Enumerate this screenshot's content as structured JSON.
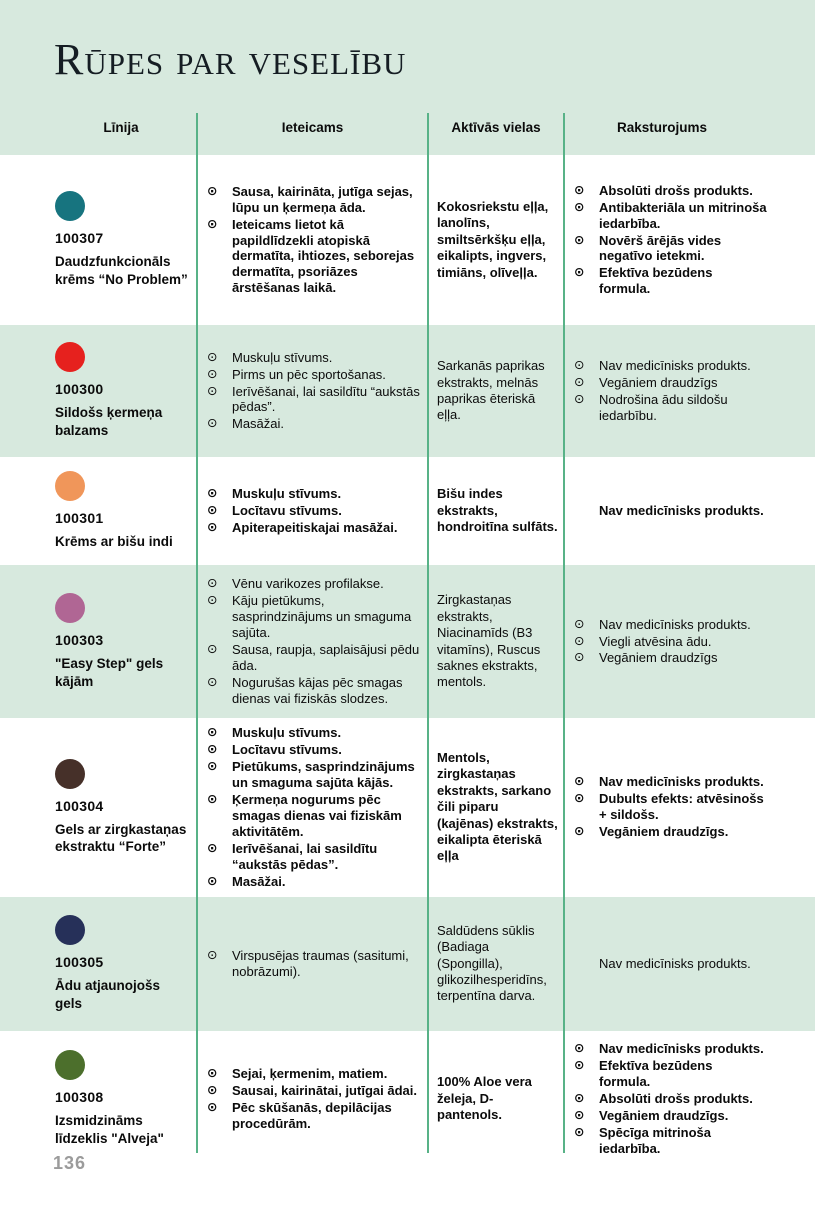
{
  "page": {
    "title": "Rūpes par veselību",
    "page_number": "136"
  },
  "colors": {
    "band_green": "#d7e9de",
    "divider_green": "#58b287",
    "page_number_gray": "#9b9b9b"
  },
  "icons": {
    "bullet": "⊙"
  },
  "table": {
    "headers": [
      "Līnija",
      "Ieteicams",
      "Aktīvās vielas",
      "Raksturojums"
    ],
    "rows": [
      {
        "code": "100307",
        "name": "Daudzfunkcionāls krēms “No Problem”",
        "dot_color": "#17747f",
        "background": "white",
        "recommended": [
          "Sausa, kairināta, jutīga sejas, lūpu un ķermeņa āda.",
          "Ieteicams lietot kā papildlīdzekli atopiskā dermatīta, ihtiozes, seborejas dermatīta, psoriāzes ārstēšanas laikā."
        ],
        "active_substances": "Kokosriekstu eļļa, lanolīns, smiltsērkšķu eļļa, eikalipts, ingvers, timiāns, olīveļļa.",
        "characteristics": {
          "bulleted": true,
          "items": [
            "Absolūti drošs produkts.",
            "Antibakteriāla un mitrinoša iedarbība.",
            "Novērš ārējās vides negatīvo ietekmi.",
            "Efektīva bezūdens formula."
          ]
        }
      },
      {
        "code": "100300",
        "name": "Sildošs ķermeņa balzams",
        "dot_color": "#e6211e",
        "background": "green",
        "recommended": [
          "Muskuļu stīvums.",
          "Pirms un pēc sportošanas.",
          "Ierīvēšanai, lai sasildītu “aukstās pēdas”.",
          "Masāžai."
        ],
        "active_substances": "Sarkanās paprikas ekstrakts, melnās paprikas ēteriskā eļļa.",
        "characteristics": {
          "bulleted": true,
          "items": [
            "Nav medicīnisks produkts.",
            "Vegāniem draudzīgs",
            "Nodrošina ādu sildošu iedarbību."
          ]
        }
      },
      {
        "code": "100301",
        "name": "Krēms ar bišu indi",
        "dot_color": "#f0965a",
        "background": "white",
        "recommended": [
          "Muskuļu stīvums.",
          "Locītavu stīvums.",
          "Apiterapeitiskajai masāžai."
        ],
        "active_substances": "Bišu indes ekstrakts, hondroitīna sulfāts.",
        "characteristics": {
          "bulleted": false,
          "items": [
            "Nav medicīnisks produkts."
          ]
        }
      },
      {
        "code": "100303",
        "name": "\"Easy Step\" gels kājām",
        "dot_color": "#b06694",
        "background": "green",
        "recommended": [
          "Vēnu varikozes profilakse.",
          "Kāju pietūkums, sasprindzinājums un smaguma sajūta.",
          "Sausa, raupja, saplaisājusi pēdu āda.",
          "Nogurušas kājas pēc smagas dienas vai fiziskās slodzes."
        ],
        "active_substances": "Zirgkastaņas ekstrakts, Niacinamīds (B3 vitamīns), Ruscus saknes ekstrakts, mentols.",
        "characteristics": {
          "bulleted": true,
          "items": [
            "Nav medicīnisks produkts.",
            "Viegli atvēsina ādu.",
            "Vegāniem draudzīgs"
          ]
        }
      },
      {
        "code": "100304",
        "name": "Gels ar zirgkastaņas ekstraktu “Forte”",
        "dot_color": "#463029",
        "background": "white",
        "recommended": [
          "Muskuļu stīvums.",
          "Locītavu stīvums.",
          "Pietūkums, sasprindzinājums un smaguma sajūta kājās.",
          "Ķermeņa nogurums pēc smagas dienas vai fiziskām aktivitātēm.",
          "Ierīvēšanai, lai sasildītu “aukstās pēdas”.",
          "Masāžai."
        ],
        "active_substances": "Mentols, zirgkastaņas ekstrakts, sarkano čili piparu (kajēnas) ekstrakts, eikalipta ēteriskā eļļa",
        "characteristics": {
          "bulleted": true,
          "items": [
            "Nav medicīnisks produkts.",
            "Dubults efekts: atvēsinošs + sildošs.",
            "Vegāniem draudzīgs."
          ]
        }
      },
      {
        "code": "100305",
        "name": "Ādu atjaunojošs gels",
        "dot_color": "#263059",
        "background": "green",
        "recommended": [
          "Virspusējas traumas (sasitumi, nobrāzumi)."
        ],
        "active_substances": "Saldūdens sūklis (Badiaga (Spongilla), glikozilhesperidīns, terpentīna darva.",
        "characteristics": {
          "bulleted": false,
          "items": [
            "Nav medicīnisks produkts."
          ]
        }
      },
      {
        "code": "100308",
        "name": "Izsmidzināms līdzeklis \"Alveja\"",
        "dot_color": "#4c6f2c",
        "background": "white",
        "recommended": [
          "Sejai, ķermenim, matiem.",
          "Sausai, kairinātai, jutīgai ādai.",
          "Pēc skūšanās, depilācijas procedūrām."
        ],
        "active_substances": "100% Aloe vera želeja, D-pantenols.",
        "characteristics": {
          "bulleted": true,
          "items": [
            "Nav medicīnisks produkts.",
            "Efektīva bezūdens formula.",
            "Absolūti drošs produkts.",
            "Vegāniem draudzīgs.",
            "Spēcīga mitrinoša iedarbība."
          ]
        }
      }
    ]
  }
}
